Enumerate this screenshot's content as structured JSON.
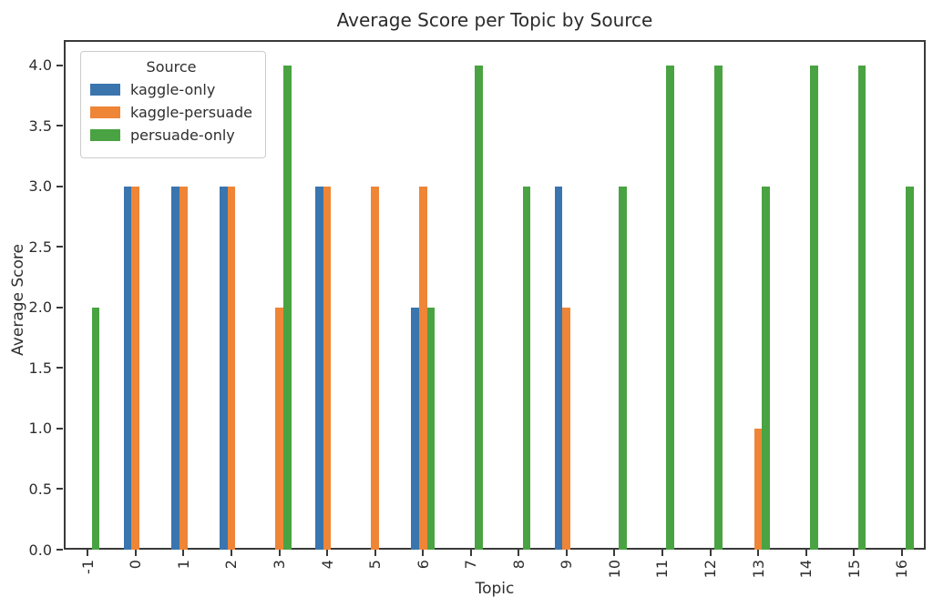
{
  "chart_data": {
    "type": "bar",
    "title": "Average Score per Topic by Source",
    "xlabel": "Topic",
    "ylabel": "Average Score",
    "legend_title": "Source",
    "legend_position": "upper-left",
    "grid": false,
    "xtick_rotation": 90,
    "ylim": [
      0,
      4.21
    ],
    "yticks": [
      0.0,
      0.5,
      1.0,
      1.5,
      2.0,
      2.5,
      3.0,
      3.5,
      4.0
    ],
    "categories": [
      "-1",
      "0",
      "1",
      "2",
      "3",
      "4",
      "5",
      "6",
      "7",
      "8",
      "9",
      "10",
      "11",
      "12",
      "13",
      "14",
      "15",
      "16"
    ],
    "series": [
      {
        "name": "kaggle-only",
        "color": "#3a75ae",
        "values": [
          null,
          3,
          3,
          3,
          null,
          3,
          null,
          2,
          null,
          null,
          3,
          null,
          null,
          null,
          null,
          null,
          null,
          null
        ]
      },
      {
        "name": "kaggle-persuade",
        "color": "#ef8536",
        "values": [
          null,
          3,
          3,
          3,
          2,
          3,
          3,
          3,
          null,
          null,
          2,
          null,
          null,
          null,
          1,
          null,
          null,
          null
        ]
      },
      {
        "name": "persuade-only",
        "color": "#4aa342",
        "values": [
          2,
          null,
          null,
          null,
          4,
          null,
          null,
          2,
          4,
          3,
          null,
          3,
          4,
          4,
          3,
          4,
          4,
          3
        ]
      }
    ],
    "colors": {
      "axis": "#3a3a3a",
      "background": "#ffffff",
      "legend_border": "#cccccc"
    }
  }
}
